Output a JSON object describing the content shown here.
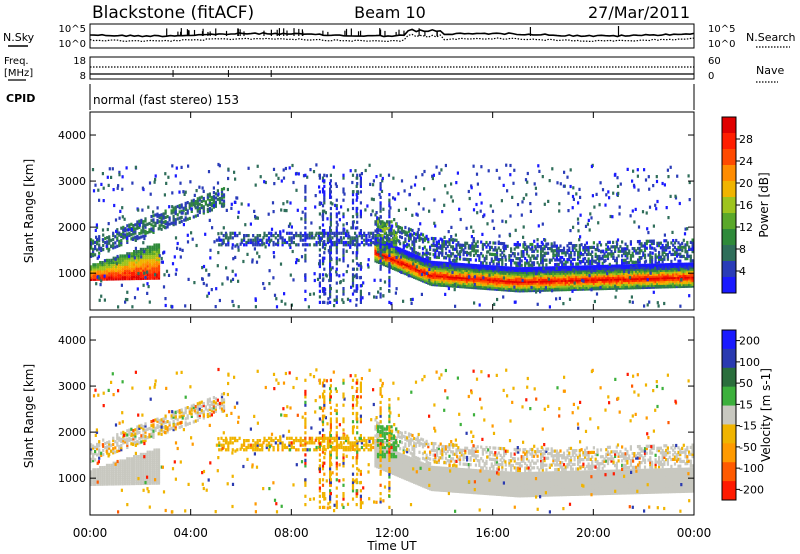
{
  "header": {
    "title_left": "Blackstone (fitACF)",
    "title_center": "Beam 10",
    "title_right": "27/Mar/2011"
  },
  "top_panels": {
    "nsky_label": "N.Sky",
    "nsky_ticks": [
      "10^5",
      "10^0"
    ],
    "nsearch_label": "N.Search",
    "nsearch_ticks": [
      "10^5",
      "10^0"
    ],
    "freq_label_top": "Freq.",
    "freq_label_bottom": "[MHz]",
    "freq_ticks": [
      "18",
      "8"
    ],
    "nave_label": "Nave",
    "nave_ticks": [
      "60",
      "0"
    ],
    "cpid_label": "CPID",
    "cpid_text": "normal (fast stereo) 153"
  },
  "colors": {
    "power": [
      "#1a1aff",
      "#2a3cb8",
      "#2f6e5a",
      "#2f8a3a",
      "#5aa82a",
      "#9ec41e",
      "#f0b400",
      "#ff8c00",
      "#ff4a00",
      "#ff1e00",
      "#e00000"
    ],
    "velocity": [
      "#ff1a00",
      "#ff5a00",
      "#ff9a00",
      "#f0b400",
      "#c8c8c0",
      "#3cb03c",
      "#2a6e3c",
      "#2a3ab0",
      "#1a1aff"
    ]
  },
  "chart_data": [
    {
      "type": "heatmap",
      "name": "power",
      "xlabel": "",
      "ylabel": "Slant Range [km]",
      "xlim": [
        "00:00",
        "24:00"
      ],
      "ylim": [
        200,
        4500
      ],
      "yticks": [
        "1000",
        "2000",
        "3000",
        "4000"
      ],
      "colorbar_label": "Power [dB]",
      "colorbar_ticks": [
        "4",
        "8",
        "12",
        "16",
        "20",
        "24",
        "28"
      ],
      "colorbar_range": [
        0,
        32
      ],
      "grid": false,
      "echo_bands": [
        {
          "t_start": 0.0,
          "t_end": 2.7,
          "range_start": 950,
          "range_end": 1700,
          "level": "high"
        },
        {
          "t_start": 0.0,
          "t_end": 5.3,
          "range_start": 1500,
          "range_end": 2800,
          "level": "low"
        },
        {
          "t_start": 5.0,
          "t_end": 11.4,
          "range_start": 1650,
          "range_end": 1900,
          "level": "low"
        },
        {
          "t_start": 11.3,
          "t_end": 24.0,
          "range_start": 750,
          "range_end": 1500,
          "level": "high"
        },
        {
          "t_start": 13.0,
          "t_end": 24.0,
          "range_start": 1300,
          "range_end": 1800,
          "level": "low"
        }
      ]
    },
    {
      "type": "heatmap",
      "name": "velocity",
      "xlabel": "Time UT",
      "ylabel": "Slant Range [km]",
      "xlim": [
        "00:00",
        "24:00"
      ],
      "ylim": [
        200,
        4500
      ],
      "xticks": [
        "00:00",
        "04:00",
        "08:00",
        "12:00",
        "16:00",
        "20:00",
        "00:00"
      ],
      "yticks": [
        "1000",
        "2000",
        "3000",
        "4000"
      ],
      "colorbar_label": "Velocity [m s-1]",
      "colorbar_ticks": [
        "200",
        "100",
        "50",
        "15",
        "-15",
        "-50",
        "-100",
        "-200"
      ],
      "colorbar_range": [
        -250,
        250
      ],
      "grid": false,
      "echo_bands": [
        {
          "t_start": 0.0,
          "t_end": 5.3,
          "range_start": 700,
          "range_end": 2800,
          "velocity": "near-zero ground scatter"
        },
        {
          "t_start": 5.0,
          "t_end": 11.4,
          "range_start": 1650,
          "range_end": 1900,
          "velocity": "-30"
        },
        {
          "t_start": 11.3,
          "t_end": 24.0,
          "range_start": 750,
          "range_end": 1500,
          "velocity": "near-zero ground scatter"
        },
        {
          "t_start": 11.4,
          "t_end": 12.2,
          "range_start": 1500,
          "range_end": 2200,
          "velocity": "+40"
        }
      ]
    }
  ]
}
